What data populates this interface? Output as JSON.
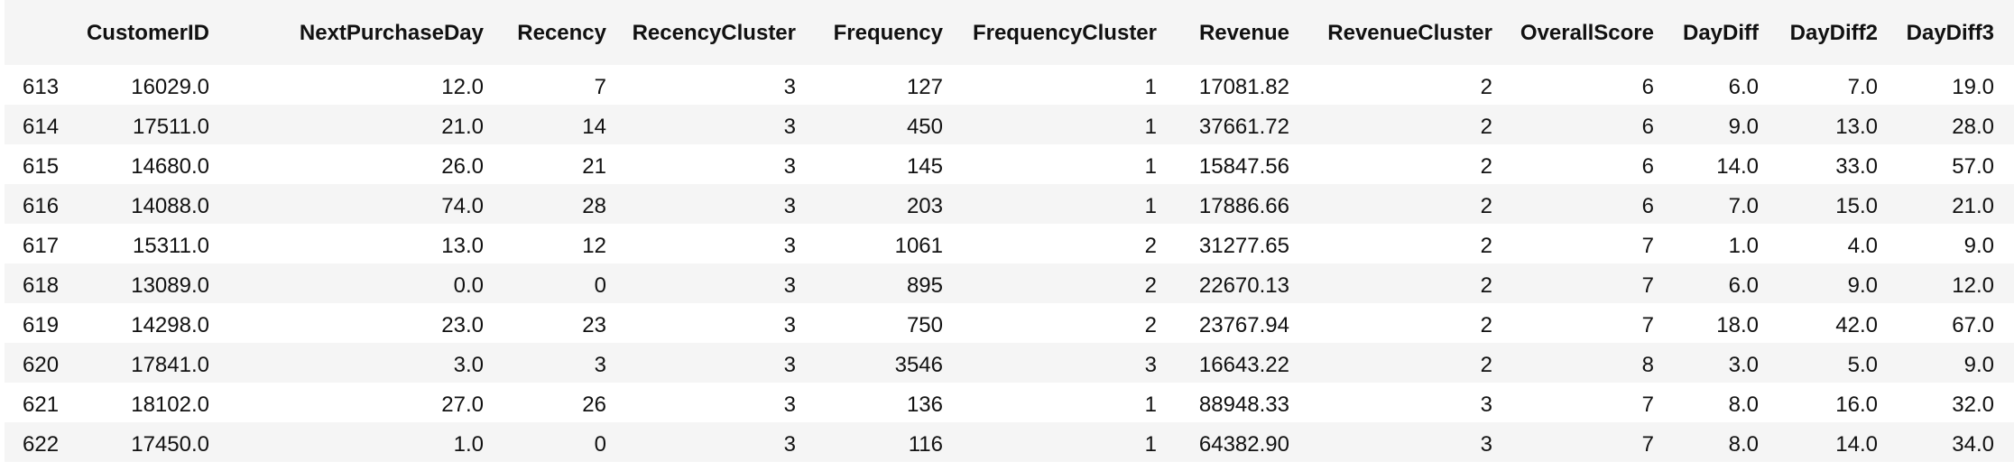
{
  "table": {
    "index_header": "",
    "columns": [
      "CustomerID",
      "NextPurchaseDay",
      "Recency",
      "RecencyCluster",
      "Frequency",
      "FrequencyCluster",
      "Revenue",
      "RevenueCluster",
      "OverallScore",
      "DayDiff",
      "DayDiff2",
      "DayDiff3"
    ],
    "rows": [
      {
        "index": "613",
        "cells": [
          "16029.0",
          "12.0",
          "7",
          "3",
          "127",
          "1",
          "17081.82",
          "2",
          "6",
          "6.0",
          "7.0",
          "19.0"
        ]
      },
      {
        "index": "614",
        "cells": [
          "17511.0",
          "21.0",
          "14",
          "3",
          "450",
          "1",
          "37661.72",
          "2",
          "6",
          "9.0",
          "13.0",
          "28.0"
        ]
      },
      {
        "index": "615",
        "cells": [
          "14680.0",
          "26.0",
          "21",
          "3",
          "145",
          "1",
          "15847.56",
          "2",
          "6",
          "14.0",
          "33.0",
          "57.0"
        ]
      },
      {
        "index": "616",
        "cells": [
          "14088.0",
          "74.0",
          "28",
          "3",
          "203",
          "1",
          "17886.66",
          "2",
          "6",
          "7.0",
          "15.0",
          "21.0"
        ]
      },
      {
        "index": "617",
        "cells": [
          "15311.0",
          "13.0",
          "12",
          "3",
          "1061",
          "2",
          "31277.65",
          "2",
          "7",
          "1.0",
          "4.0",
          "9.0"
        ]
      },
      {
        "index": "618",
        "cells": [
          "13089.0",
          "0.0",
          "0",
          "3",
          "895",
          "2",
          "22670.13",
          "2",
          "7",
          "6.0",
          "9.0",
          "12.0"
        ]
      },
      {
        "index": "619",
        "cells": [
          "14298.0",
          "23.0",
          "23",
          "3",
          "750",
          "2",
          "23767.94",
          "2",
          "7",
          "18.0",
          "42.0",
          "67.0"
        ]
      },
      {
        "index": "620",
        "cells": [
          "17841.0",
          "3.0",
          "3",
          "3",
          "3546",
          "3",
          "16643.22",
          "2",
          "8",
          "3.0",
          "5.0",
          "9.0"
        ]
      },
      {
        "index": "621",
        "cells": [
          "18102.0",
          "27.0",
          "26",
          "3",
          "136",
          "1",
          "88948.33",
          "3",
          "7",
          "8.0",
          "16.0",
          "32.0"
        ]
      },
      {
        "index": "622",
        "cells": [
          "17450.0",
          "1.0",
          "0",
          "3",
          "116",
          "1",
          "64382.90",
          "3",
          "7",
          "8.0",
          "14.0",
          "34.0"
        ]
      }
    ]
  },
  "colors": {
    "header_bg": "#f5f5f5",
    "stripe_bg": "#f5f5f5",
    "text": "#111111"
  }
}
